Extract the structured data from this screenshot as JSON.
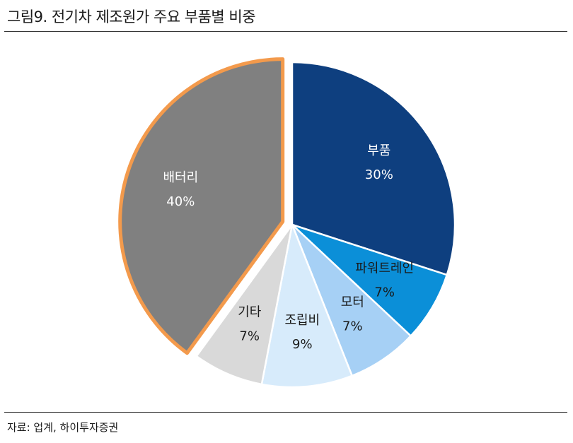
{
  "header": {
    "title": "그림9. 전기차 제조원가 주요 부품별 비중"
  },
  "footer": {
    "source": "자료: 업계, 하이투자증권"
  },
  "chart_data": {
    "type": "pie",
    "title": "그림9. 전기차 제조원가 주요 부품별 비중",
    "start_angle_deg": 0,
    "direction": "clockwise",
    "slices": [
      {
        "label": "부품",
        "value": 30,
        "value_label": "30%",
        "color": "#0e3f7f",
        "label_color": "#ffffff"
      },
      {
        "label": "파워트레인",
        "value": 7,
        "value_label": "7%",
        "color": "#0b8fd8",
        "label_color": "#1a1a1a"
      },
      {
        "label": "모터",
        "value": 7,
        "value_label": "7%",
        "color": "#a6d0f5",
        "label_color": "#1a1a1a"
      },
      {
        "label": "조립비",
        "value": 9,
        "value_label": "9%",
        "color": "#d7ebfb",
        "label_color": "#1a1a1a"
      },
      {
        "label": "기타",
        "value": 7,
        "value_label": "7%",
        "color": "#d9d9d9",
        "label_color": "#1a1a1a"
      },
      {
        "label": "배터리",
        "value": 40,
        "value_label": "40%",
        "color": "#808080",
        "label_color": "#ffffff",
        "exploded": true,
        "outline": "#f39a4c"
      }
    ]
  }
}
